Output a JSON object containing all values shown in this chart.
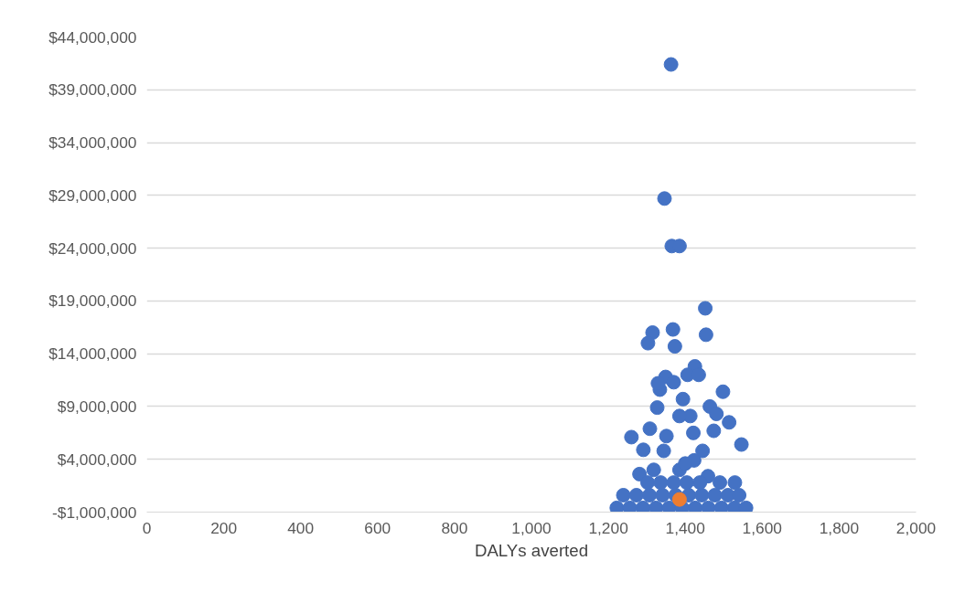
{
  "chart_data": {
    "type": "scatter",
    "xlabel": "DALYs averted",
    "xlim": [
      0,
      2000
    ],
    "xticks": [
      0,
      200,
      400,
      600,
      800,
      {
        "value": 1000,
        "label": "1,000"
      },
      {
        "value": 1200,
        "label": "1,200"
      },
      {
        "value": 1400,
        "label": "1,400"
      },
      {
        "value": 1600,
        "label": "1,600"
      },
      {
        "value": 1800,
        "label": "1,800"
      },
      {
        "value": 2000,
        "label": "2,000"
      }
    ],
    "ylim": [
      -1000000,
      44000000
    ],
    "yticks": [
      {
        "value": -1000000,
        "label": "-$1,000,000"
      },
      {
        "value": 4000000,
        "label": "$4,000,000"
      },
      {
        "value": 9000000,
        "label": "$9,000,000"
      },
      {
        "value": 14000000,
        "label": "$14,000,000"
      },
      {
        "value": 19000000,
        "label": "$19,000,000"
      },
      {
        "value": 24000000,
        "label": "$24,000,000"
      },
      {
        "value": 29000000,
        "label": "$29,000,000"
      },
      {
        "value": 34000000,
        "label": "$34,000,000"
      },
      {
        "value": 39000000,
        "label": "$39,000,000"
      },
      {
        "value": 44000000,
        "label": "$44,000,000"
      }
    ],
    "grid": "y",
    "marker": "circle",
    "series": [
      {
        "color": "#4472c4",
        "x": [
          1363,
          1346,
          1365,
          1385,
          1452,
          1368,
          1315,
          1454,
          1303,
          1373,
          1425,
          1349,
          1334,
          1327,
          1406,
          1435,
          1498,
          1329,
          1370,
          1394,
          1413,
          1385,
          1464,
          1481,
          1514,
          1308,
          1260,
          1351,
          1421,
          1474,
          1423,
          1546,
          1291,
          1344,
          1445,
          1281,
          1529,
          1459,
          1222,
          1256,
          1290,
          1324,
          1358,
          1392,
          1426,
          1460,
          1494,
          1528,
          1558,
          1239,
          1273,
          1307,
          1341,
          1375,
          1409,
          1443,
          1477,
          1511,
          1540,
          1302,
          1336,
          1370,
          1404,
          1438,
          1490,
          1318,
          1385,
          1400
        ],
        "values": [
          41400000,
          28700000,
          24200000,
          24200000,
          18300000,
          16300000,
          16000000,
          15800000,
          15000000,
          14700000,
          12800000,
          11800000,
          10600000,
          8900000,
          12000000,
          12000000,
          10400000,
          11200000,
          11300000,
          9700000,
          8100000,
          8100000,
          9000000,
          8300000,
          7500000,
          6900000,
          6100000,
          6200000,
          6500000,
          6700000,
          3900000,
          5400000,
          4900000,
          4800000,
          4800000,
          2600000,
          1800000,
          2400000,
          -600000,
          -600000,
          -600000,
          -600000,
          -600000,
          -600000,
          -600000,
          -600000,
          -600000,
          -600000,
          -600000,
          600000,
          600000,
          600000,
          600000,
          600000,
          600000,
          600000,
          600000,
          600000,
          600000,
          1800000,
          1800000,
          1800000,
          1800000,
          1800000,
          1800000,
          3000000,
          3000000,
          3600000
        ]
      },
      {
        "color": "#ed7d31",
        "x": [
          1385
        ],
        "values": [
          200000
        ]
      }
    ]
  }
}
